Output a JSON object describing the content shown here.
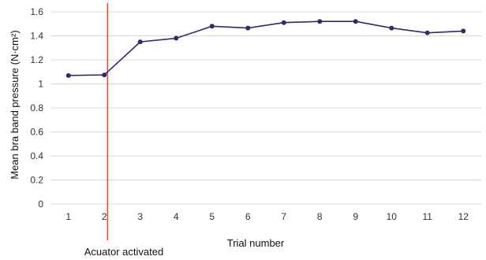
{
  "chart_data": {
    "type": "line",
    "title": "",
    "xlabel": "Trial number",
    "ylabel": "Mean bra band pressure (N·cm²)",
    "x": [
      1,
      2,
      3,
      4,
      5,
      6,
      7,
      8,
      9,
      10,
      11,
      12
    ],
    "x_tick_labels": [
      "1",
      "2",
      "3",
      "4",
      "5",
      "6",
      "7",
      "8",
      "9",
      "10",
      "11",
      "12"
    ],
    "xlim": [
      0.5,
      12.5
    ],
    "ylim": [
      0,
      1.6
    ],
    "y_ticks": [
      0,
      0.2,
      0.4,
      0.6,
      0.8,
      1,
      1.2,
      1.4,
      1.6
    ],
    "y_tick_labels": [
      "0",
      "0.2",
      "0.4",
      "0.6",
      "0.8",
      "1",
      "1.2",
      "1.4",
      "1.6"
    ],
    "grid": true,
    "legend": "none",
    "series": [
      {
        "values": [
          1.07,
          1.075,
          1.35,
          1.38,
          1.48,
          1.465,
          1.51,
          1.52,
          1.52,
          1.465,
          1.425,
          1.44
        ],
        "color": "#2e2a6e"
      }
    ],
    "annotations": [
      {
        "type": "vertical-line",
        "x": 2,
        "label": "Acuator activated",
        "color": "#e8513a"
      }
    ],
    "gridline_color": "#d9d9d9"
  }
}
